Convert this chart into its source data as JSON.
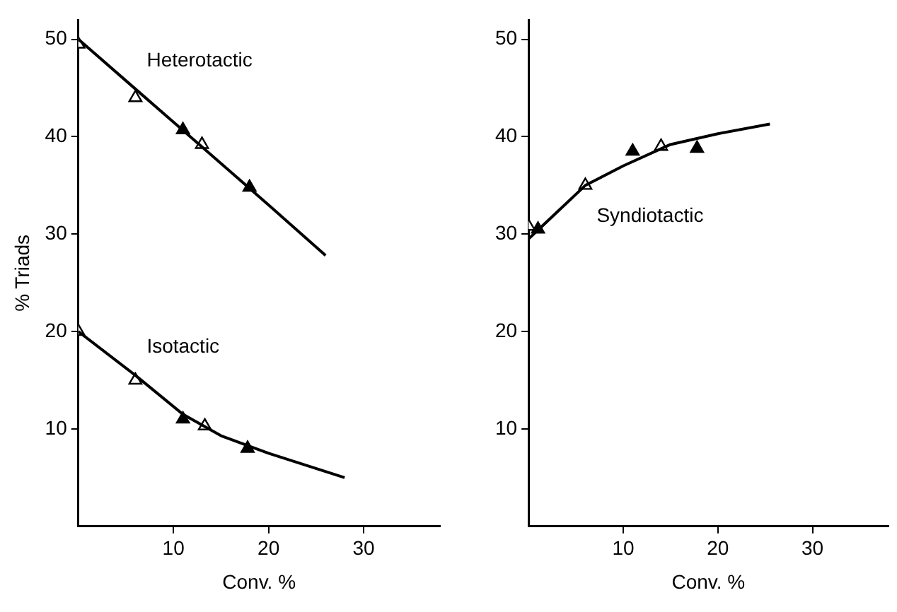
{
  "chart_data": [
    {
      "type": "line",
      "xlabel": "Conv. %",
      "ylabel": "% Triads",
      "xlim": [
        0,
        38
      ],
      "xticks": [
        10,
        20,
        30
      ],
      "ylim": [
        0,
        52
      ],
      "yticks": [
        10,
        20,
        30,
        40,
        50
      ],
      "grid": false,
      "legend": false,
      "series": [
        {
          "name": "Heterotactic",
          "type": "line",
          "marker": "none",
          "color": "#000000",
          "x": [
            0,
            6,
            10,
            20,
            26
          ],
          "values": [
            50,
            44.9,
            41.5,
            33,
            27.8
          ]
        },
        {
          "name": "Isotactic",
          "type": "line",
          "marker": "none",
          "color": "#000000",
          "x": [
            0,
            6,
            11,
            15,
            20,
            28
          ],
          "values": [
            20,
            15.5,
            11.5,
            9.3,
            7.5,
            5
          ]
        },
        {
          "type": "scatter",
          "marker": "triangle",
          "color": "#ffffff",
          "x": [
            0,
            6,
            13,
            0,
            6,
            13.3
          ],
          "values": [
            49.5,
            44,
            39.2,
            20,
            15,
            10.3
          ]
        },
        {
          "type": "scatter",
          "marker": "triangle",
          "color": "#000000",
          "x": [
            11,
            18,
            11,
            17.8
          ],
          "values": [
            40.7,
            34.8,
            11,
            8
          ]
        }
      ]
    },
    {
      "type": "line",
      "xlabel": "Conv. %",
      "xlim": [
        0,
        38
      ],
      "xticks": [
        10,
        20,
        30
      ],
      "ylim": [
        0,
        52
      ],
      "yticks": [
        10,
        20,
        30,
        40,
        50
      ],
      "grid": false,
      "legend": false,
      "series": [
        {
          "name": "Syndiotactic",
          "type": "line",
          "marker": "none",
          "color": "#000000",
          "x": [
            0,
            6,
            10,
            15,
            20,
            25.5
          ],
          "values": [
            29.5,
            35,
            37,
            39.2,
            40.3,
            41.3
          ]
        },
        {
          "type": "scatter",
          "marker": "triangle",
          "color": "#ffffff",
          "x": [
            0,
            6,
            14
          ],
          "values": [
            30.8,
            35,
            39
          ]
        },
        {
          "type": "scatter",
          "marker": "triangle",
          "color": "#000000",
          "x": [
            1,
            11,
            17.8
          ],
          "values": [
            30.5,
            38.5,
            38.8
          ]
        }
      ]
    }
  ]
}
